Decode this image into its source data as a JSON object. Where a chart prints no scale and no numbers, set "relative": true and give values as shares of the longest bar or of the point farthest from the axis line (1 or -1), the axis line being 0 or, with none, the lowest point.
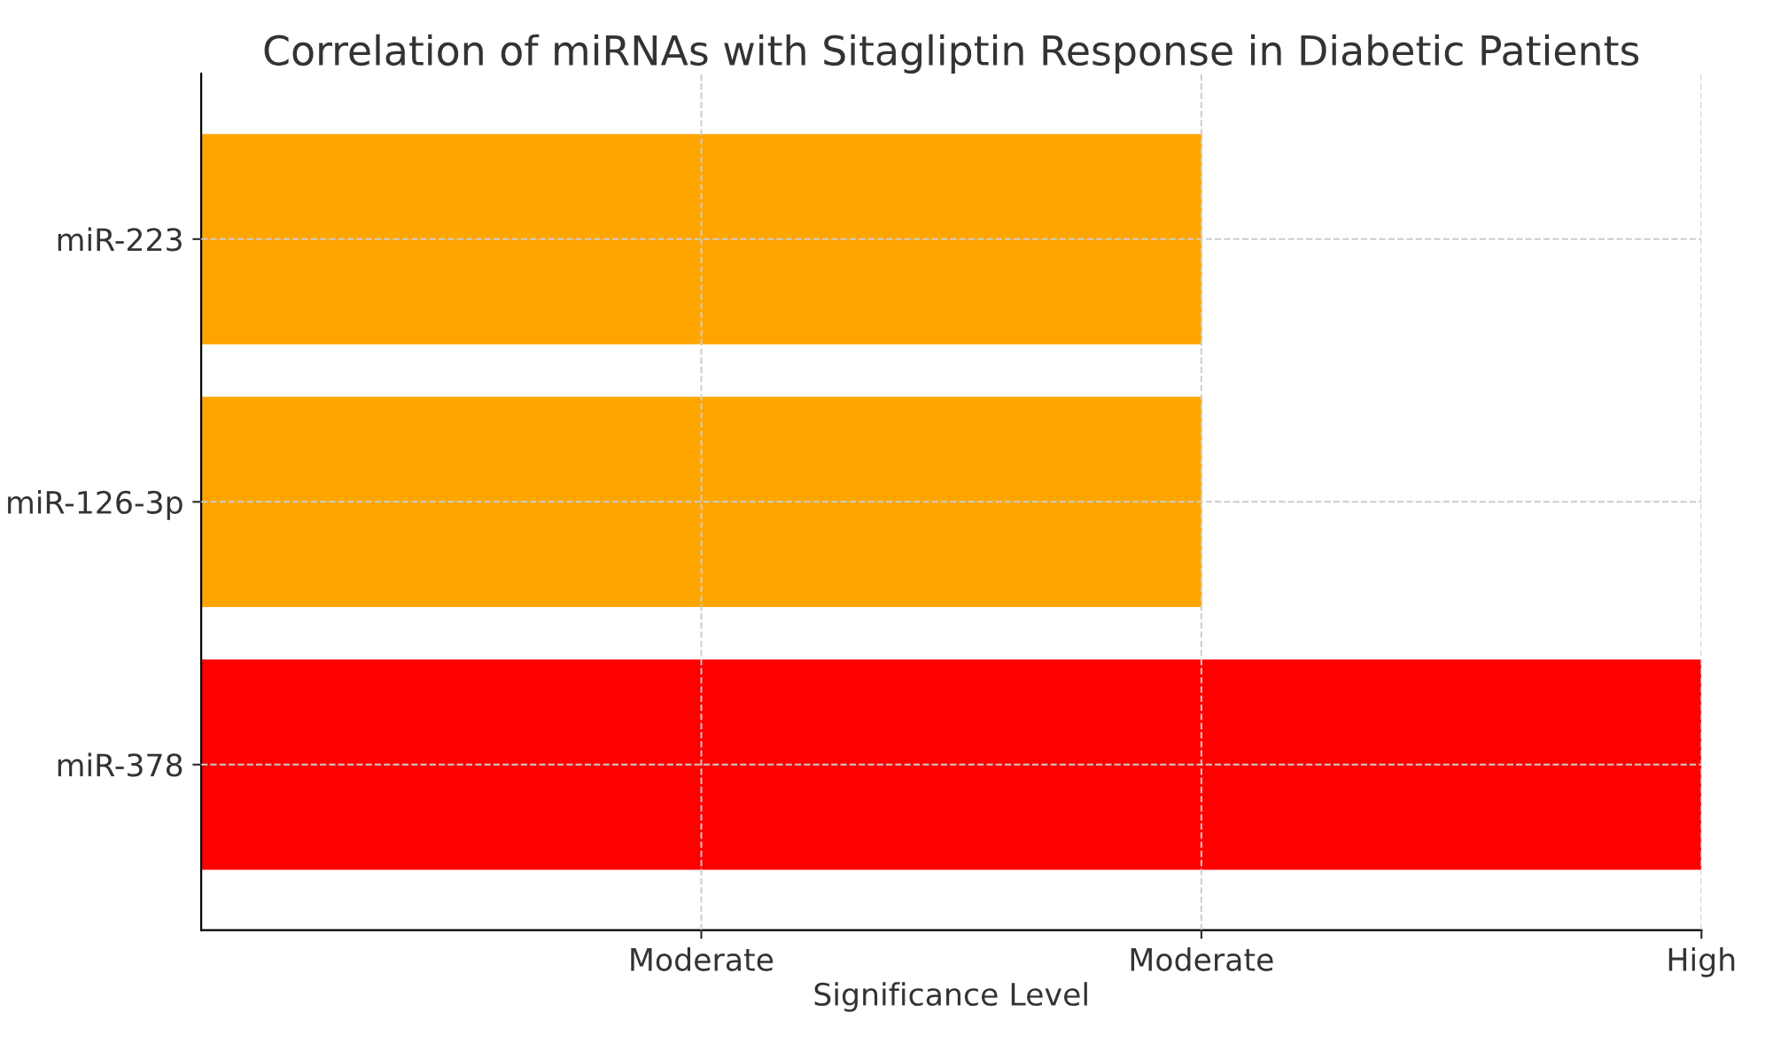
{
  "chart_data": {
    "type": "bar",
    "orientation": "horizontal",
    "title": "Correlation of miRNAs with Sitagliptin Response in Diabetic Patients",
    "xlabel": "Significance Level",
    "categories": [
      "miR-223",
      "miR-126-3p",
      "miR-378"
    ],
    "values": [
      0.667,
      0.667,
      1
    ],
    "relative": true,
    "colors": [
      "#ffa500",
      "#ffa500",
      "#ff0000"
    ],
    "annotations": [
      "Moderate",
      "Moderate",
      "High"
    ],
    "grid": true
  }
}
